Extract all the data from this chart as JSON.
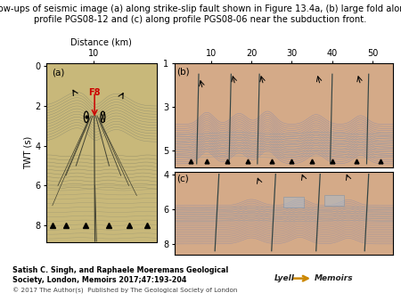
{
  "title_line1": "Blow-ups of seismic image (a) along strike-slip fault shown in Figure 13.4a, (b) large fold along",
  "title_line2": "profile PGS08-12 and (c) along profile PGS08-06 near the subduction front.",
  "title_fontsize": 7.2,
  "author_text": "Satish C. Singh, and Raphaele Moeremans Geological\nSociety, London, Memoirs 2017;47:193-204",
  "copyright_text": "© 2017 The Author(s)  Published by The Geological Society of London",
  "author_fontsize": 5.8,
  "copyright_fontsize": 5.2,
  "bg_color": "#ffffff",
  "panel_a_bg": "#c8b87a",
  "panel_a_deep_bg": "#b8a860",
  "panel_bc_bg": "#d4aa88",
  "panel_bc_fold_bg": "#c8a080",
  "ylabel": "TWT (s)",
  "xlabel_a": "Distance (km)",
  "xtick_a": 10,
  "yticks_a": [
    0,
    2,
    4,
    6,
    8
  ],
  "xticks_b": [
    10,
    20,
    30,
    40,
    50
  ],
  "yticks_b": [
    1,
    3,
    5
  ],
  "yticks_c": [
    4,
    6,
    8
  ],
  "layer_color_a": "#8a8a70",
  "layer_color_bc": "#9999aa",
  "fault_color": "#444433",
  "triangle_color": "#111111",
  "f8_color": "#cc0000",
  "arrow_color": "#111111",
  "lyell_color": "#222222"
}
